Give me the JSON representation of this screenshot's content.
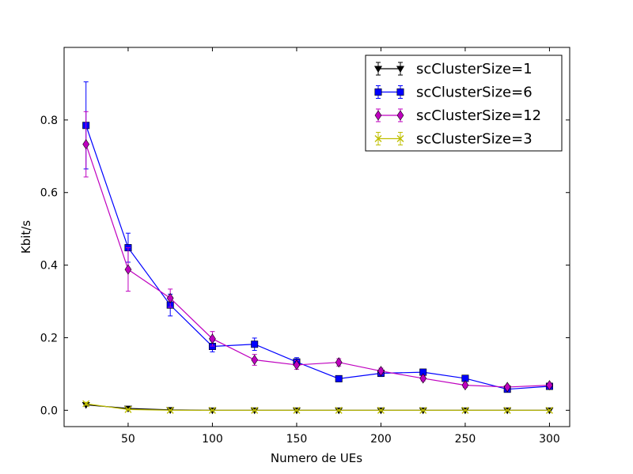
{
  "chart_data": {
    "type": "line",
    "title": "",
    "xlabel": "Numero de UEs",
    "ylabel": "Kbit/s",
    "xlim": [
      12,
      312
    ],
    "ylim": [
      -0.045,
      1.0
    ],
    "xticks": [
      50,
      100,
      150,
      200,
      250,
      300
    ],
    "yticks": [
      0.0,
      0.2,
      0.4,
      0.6,
      0.8
    ],
    "ytick_labels": [
      "0.0",
      "0.2",
      "0.4",
      "0.6",
      "0.8"
    ],
    "grid": false,
    "legend_position": "top-right",
    "x": [
      25,
      50,
      75,
      100,
      125,
      150,
      175,
      200,
      225,
      250,
      275,
      300
    ],
    "series": [
      {
        "name": "scClusterSize=1",
        "color": "#000000",
        "marker": "triangle-down",
        "values": [
          0.015,
          0.005,
          0.001,
          0.0,
          0.0,
          0.0,
          0.0,
          0.0,
          0.0,
          0.0,
          0.0,
          0.0
        ],
        "errors": [
          0.003,
          0.002,
          0.001,
          0.0,
          0.0,
          0.0,
          0.0,
          0.0,
          0.0,
          0.0,
          0.0,
          0.0
        ]
      },
      {
        "name": "scClusterSize=6",
        "color": "#0000ff",
        "marker": "square",
        "values": [
          0.785,
          0.448,
          0.29,
          0.176,
          0.182,
          0.133,
          0.087,
          0.102,
          0.105,
          0.088,
          0.058,
          0.066
        ],
        "errors": [
          0.12,
          0.04,
          0.03,
          0.015,
          0.017,
          0.012,
          0.007,
          0.009,
          0.008,
          0.007,
          0.006,
          0.006
        ]
      },
      {
        "name": "scClusterSize=12",
        "color": "#bf00bf",
        "marker": "diamond",
        "values": [
          0.733,
          0.388,
          0.309,
          0.197,
          0.139,
          0.125,
          0.132,
          0.108,
          0.088,
          0.069,
          0.064,
          0.069
        ],
        "errors": [
          0.09,
          0.06,
          0.025,
          0.02,
          0.015,
          0.012,
          0.01,
          0.008,
          0.007,
          0.006,
          0.005,
          0.005
        ]
      },
      {
        "name": "scClusterSize=3",
        "color": "#bfbf00",
        "marker": "x",
        "values": [
          0.018,
          0.002,
          0.0,
          0.0,
          0.0,
          0.0,
          0.0,
          0.0,
          0.0,
          0.0,
          0.0,
          0.0
        ],
        "errors": [
          0.004,
          0.001,
          0.0,
          0.0,
          0.0,
          0.0,
          0.0,
          0.0,
          0.0,
          0.0,
          0.0,
          0.0
        ]
      }
    ],
    "legend_order": [
      0,
      1,
      2,
      3
    ]
  }
}
